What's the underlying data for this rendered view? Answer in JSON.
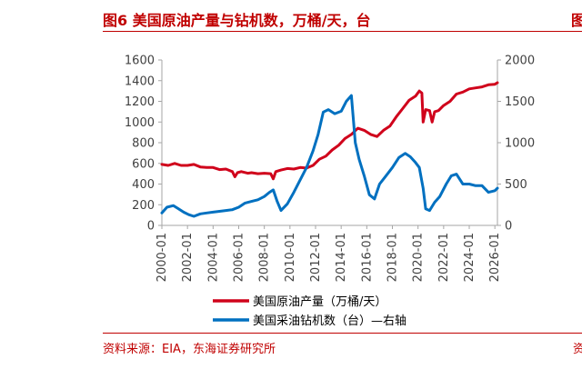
{
  "title": "图6  美国原油产量与钻机数，万桶/天，台",
  "title_clipped_next": "图",
  "source": "资料来源：EIA，东海证券研究所",
  "source_clipped_next": "资",
  "colors": {
    "production": "#d0021b",
    "rigs": "#0070c0",
    "accent": "#c00000"
  },
  "chart_data": {
    "type": "line",
    "title": "",
    "x_ticks": [
      "2000-01",
      "2002-01",
      "2004-01",
      "2006-01",
      "2008-01",
      "2010-01",
      "2012-01",
      "2014-01",
      "2016-01",
      "2018-01",
      "2020-01",
      "2022-01",
      "2024-01",
      "2026-01"
    ],
    "y_left": {
      "min": 0,
      "max": 1600,
      "ticks": [
        0,
        200,
        400,
        600,
        800,
        1000,
        1200,
        1400,
        1600
      ]
    },
    "y_right": {
      "min": 0,
      "max": 2000,
      "ticks": [
        0,
        500,
        1000,
        1500,
        2000
      ]
    },
    "legend_position": "bottom",
    "series": [
      {
        "name": "美国原油产量（万桶/天）",
        "axis": "left",
        "color": "#d0021b",
        "x": [
          2000.0,
          2000.5,
          2001.0,
          2001.5,
          2002.0,
          2002.5,
          2003.0,
          2003.5,
          2004.0,
          2004.5,
          2005.0,
          2005.5,
          2005.7,
          2005.9,
          2006.2,
          2006.7,
          2007.0,
          2007.5,
          2008.0,
          2008.5,
          2008.7,
          2008.9,
          2009.3,
          2009.8,
          2010.3,
          2010.8,
          2011.3,
          2011.8,
          2012.3,
          2012.8,
          2013.3,
          2013.8,
          2014.3,
          2014.8,
          2015.3,
          2015.8,
          2016.3,
          2016.8,
          2017.3,
          2017.8,
          2018.3,
          2018.8,
          2019.3,
          2019.8,
          2020.1,
          2020.3,
          2020.4,
          2020.6,
          2020.9,
          2021.1,
          2021.3,
          2021.6,
          2022.0,
          2022.5,
          2023.0,
          2023.5,
          2024.0,
          2024.5,
          2025.0,
          2025.5,
          2026.0,
          2026.2
        ],
        "y": [
          590,
          580,
          600,
          580,
          580,
          590,
          565,
          560,
          560,
          540,
          545,
          520,
          470,
          510,
          520,
          505,
          510,
          500,
          505,
          500,
          450,
          520,
          535,
          550,
          545,
          560,
          555,
          580,
          640,
          670,
          730,
          775,
          840,
          880,
          940,
          920,
          880,
          860,
          920,
          960,
          1050,
          1130,
          1210,
          1250,
          1300,
          1280,
          1000,
          1120,
          1110,
          1000,
          1100,
          1110,
          1160,
          1200,
          1270,
          1290,
          1320,
          1330,
          1340,
          1360,
          1365,
          1380
        ]
      },
      {
        "name": "美国采油钻机数（台）—右轴",
        "axis": "right",
        "color": "#0070c0",
        "x": [
          2000.0,
          2000.4,
          2000.9,
          2001.3,
          2001.7,
          2002.1,
          2002.5,
          2003.0,
          2003.5,
          2004.0,
          2004.5,
          2005.0,
          2005.5,
          2006.0,
          2006.5,
          2007.0,
          2007.5,
          2008.0,
          2008.4,
          2008.7,
          2009.0,
          2009.3,
          2009.8,
          2010.3,
          2010.8,
          2011.3,
          2011.8,
          2012.2,
          2012.6,
          2013.0,
          2013.5,
          2014.0,
          2014.4,
          2014.8,
          2015.1,
          2015.4,
          2015.8,
          2016.2,
          2016.6,
          2017.0,
          2017.5,
          2018.0,
          2018.5,
          2019.0,
          2019.4,
          2019.8,
          2020.1,
          2020.4,
          2020.6,
          2020.9,
          2021.3,
          2021.7,
          2022.2,
          2022.6,
          2023.0,
          2023.5,
          2024.0,
          2024.5,
          2025.0,
          2025.5,
          2026.0,
          2026.2
        ],
        "y": [
          150,
          220,
          240,
          200,
          160,
          130,
          110,
          140,
          150,
          160,
          170,
          180,
          190,
          220,
          270,
          290,
          310,
          350,
          400,
          430,
          290,
          180,
          260,
          400,
          550,
          700,
          900,
          1100,
          1370,
          1400,
          1350,
          1380,
          1500,
          1570,
          1000,
          800,
          600,
          370,
          320,
          500,
          600,
          700,
          820,
          870,
          830,
          760,
          700,
          450,
          200,
          180,
          280,
          350,
          500,
          600,
          620,
          500,
          500,
          480,
          480,
          400,
          420,
          450
        ]
      }
    ]
  }
}
